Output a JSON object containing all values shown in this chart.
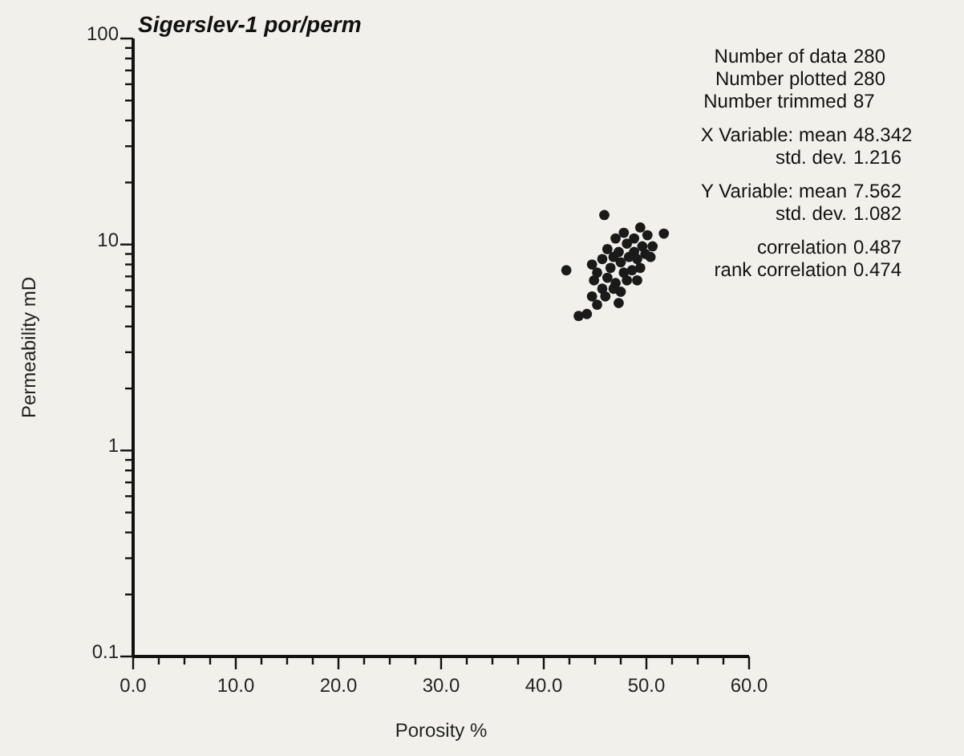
{
  "chart_data": {
    "type": "scatter",
    "title": "Sigerslev-1 por/perm",
    "xlabel": "Porosity %",
    "ylabel": "Permeability mD",
    "log": "y",
    "grid": false,
    "marker": "circle",
    "xlim": [
      0,
      60
    ],
    "ylim": [
      0.1,
      100
    ],
    "xticks": [
      {
        "value": 0,
        "label": "0.0"
      },
      {
        "value": 2.5,
        "label": null
      },
      {
        "value": 5,
        "label": null
      },
      {
        "value": 7.5,
        "label": null
      },
      {
        "value": 10,
        "label": "10.0"
      },
      {
        "value": 12.5,
        "label": null
      },
      {
        "value": 15,
        "label": null
      },
      {
        "value": 17.5,
        "label": null
      },
      {
        "value": 20,
        "label": "20.0"
      },
      {
        "value": 22.5,
        "label": null
      },
      {
        "value": 25,
        "label": null
      },
      {
        "value": 27.5,
        "label": null
      },
      {
        "value": 30,
        "label": "30.0"
      },
      {
        "value": 32.5,
        "label": null
      },
      {
        "value": 35,
        "label": null
      },
      {
        "value": 37.5,
        "label": null
      },
      {
        "value": 40,
        "label": "40.0"
      },
      {
        "value": 42.5,
        "label": null
      },
      {
        "value": 45,
        "label": null
      },
      {
        "value": 47.5,
        "label": null
      },
      {
        "value": 50,
        "label": "50.0"
      },
      {
        "value": 52.5,
        "label": null
      },
      {
        "value": 55,
        "label": null
      },
      {
        "value": 57.5,
        "label": null
      },
      {
        "value": 60,
        "label": "60.0"
      }
    ],
    "yticks": [
      0.1,
      {
        "value": 0.2,
        "label": null
      },
      {
        "value": 0.3,
        "label": null
      },
      {
        "value": 0.4,
        "label": null
      },
      {
        "value": 0.5,
        "label": null
      },
      {
        "value": 0.6,
        "label": null
      },
      {
        "value": 0.7,
        "label": null
      },
      {
        "value": 0.8,
        "label": null
      },
      {
        "value": 0.9,
        "label": null
      },
      1,
      {
        "value": 2,
        "label": null
      },
      {
        "value": 3,
        "label": null
      },
      {
        "value": 4,
        "label": null
      },
      {
        "value": 5,
        "label": null
      },
      {
        "value": 6,
        "label": null
      },
      {
        "value": 7,
        "label": null
      },
      {
        "value": 8,
        "label": null
      },
      {
        "value": 9,
        "label": null
      },
      10,
      {
        "value": 20,
        "label": null
      },
      {
        "value": 30,
        "label": null
      },
      {
        "value": 40,
        "label": null
      },
      {
        "value": 50,
        "label": null
      },
      {
        "value": 60,
        "label": null
      },
      {
        "value": 70,
        "label": null
      },
      {
        "value": 80,
        "label": null
      },
      {
        "value": 90,
        "label": null
      },
      100
    ],
    "annotations": [
      "Number of data 280",
      "Number plotted 280",
      "Number trimmed 87",
      "X Variable: mean 48.342",
      "std. dev. 1.216",
      "Y Variable: mean 7.562",
      "std. dev. 1.082",
      "correlation 0.487",
      "rank correlation 0.474"
    ],
    "series": [
      {
        "color": "#1a1a1a",
        "x": [
          45.9,
          42.2,
          51.7,
          43.4,
          44.2,
          45.2,
          47.3,
          44.7,
          45.7,
          44.9,
          44.7,
          46.2,
          47.0,
          48.1,
          49.1,
          49.4,
          50.4,
          50.6,
          50.1,
          49.4,
          47.8,
          47.0,
          46.2,
          45.7,
          46.8,
          47.5,
          48.3,
          48.8,
          49.6,
          48.6,
          47.8,
          46.5,
          47.3,
          48.1,
          48.8,
          49.9,
          46.8,
          46.0,
          47.5,
          45.2,
          49.1
        ],
        "values": [
          13.9,
          7.5,
          11.3,
          4.5,
          4.6,
          5.1,
          5.2,
          5.6,
          6.1,
          6.7,
          8.0,
          6.9,
          6.5,
          6.7,
          6.7,
          7.7,
          8.7,
          9.8,
          11.1,
          12.1,
          11.4,
          10.7,
          9.5,
          8.5,
          8.7,
          8.2,
          8.7,
          9.2,
          9.8,
          7.5,
          7.3,
          7.7,
          9.2,
          10.1,
          10.7,
          9.0,
          6.1,
          5.6,
          5.9,
          7.3,
          8.5
        ]
      }
    ]
  }
}
